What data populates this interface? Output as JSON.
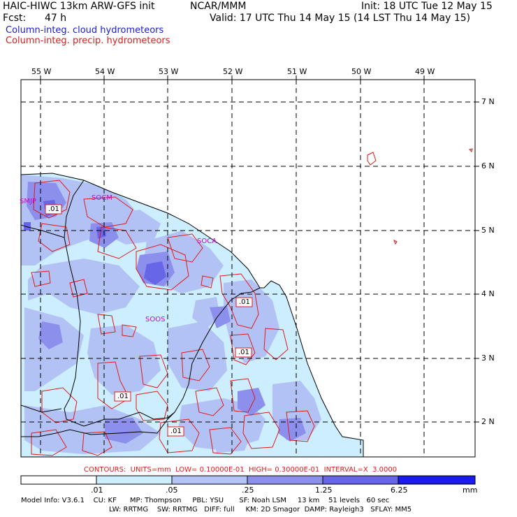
{
  "header": {
    "model": "HAIC-HIWC 13km ARW-GFS init",
    "org": "NCAR/MMM",
    "init": "Init: 18 UTC Tue 12 May 15",
    "fcst_label": "Fcst:",
    "fcst_value": "47 h",
    "valid": "Valid: 17 UTC Thu 14 May 15 (14 LST Thu 14 May 15)",
    "field1": "Column-integ. cloud hydrometeors",
    "field2": "Column-integ. precip. hydrometeors"
  },
  "lon_labels": [
    "55 W",
    "54 W",
    "53 W",
    "52 W",
    "51 W",
    "50 W",
    "49 W"
  ],
  "lat_labels": [
    "7 N",
    "6 N",
    "5 N",
    "4 N",
    "3 N",
    "2 N"
  ],
  "stations": [
    "SMJP",
    "SOCM",
    "SOCA",
    "SOOS"
  ],
  "contour_labels": [
    ".01",
    ".01",
    ".01",
    ".01",
    ".01"
  ],
  "contours_info": "CONTOURS:  UNITS=mm  LOW= 0.10000E-01  HIGH= 0.30000E-01  INTERVAL=X  3.0000",
  "colorbar": {
    "ticks": [
      ".01",
      ".05",
      ".25",
      "1.25",
      "6.25"
    ],
    "unit": "mm",
    "colors": [
      "#ffffff",
      "#cceeff",
      "#b3c2f5",
      "#8c8fec",
      "#6666e6",
      "#1a1aee"
    ]
  },
  "footer": {
    "line1": "Model Info: V3.6.1    CU: KF      MP: Thompson     PBL: YSU       SF: Noah LSM     13 km    51 levels   60 sec",
    "line2": "LW: RRTMG    SW: RRTMG   DIFF: full     KM: 2D Smagor  DAMP: Rayleigh3   SFLAY: MM5"
  },
  "colors": {
    "cloud_title": "#1a1ad0",
    "precip_title": "#e01a1a",
    "station": "#cc00cc",
    "contour": "#e01a1a"
  }
}
